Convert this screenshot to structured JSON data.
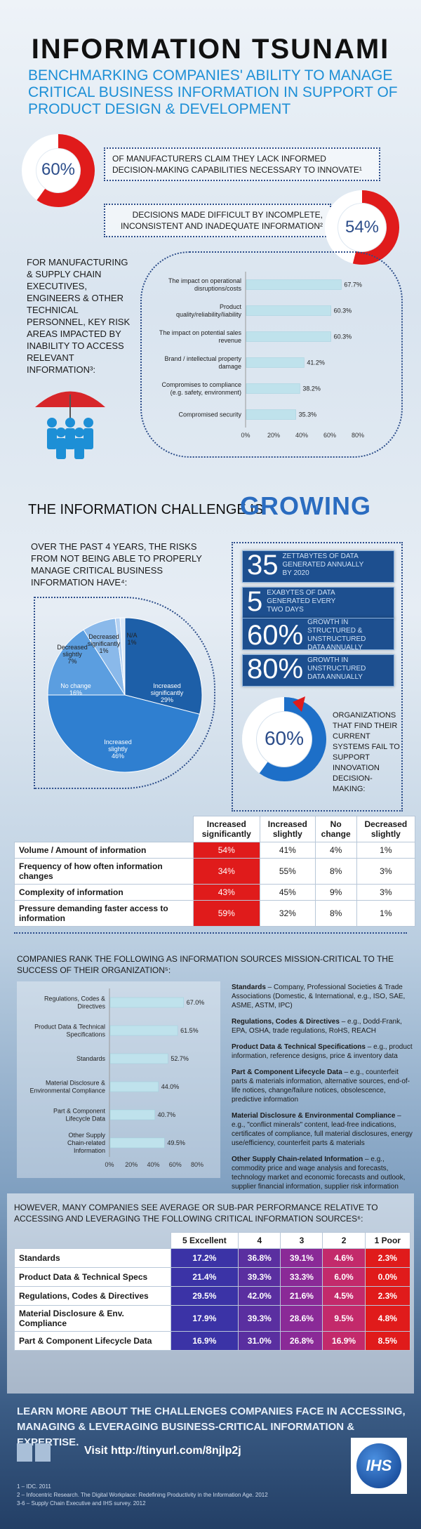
{
  "header": {
    "title": "INFORMATION TSUNAMI",
    "subtitle": "BENCHMARKING COMPANIES' ABILITY TO MANAGE CRITICAL BUSINESS INFORMATION IN SUPPORT OF PRODUCT DESIGN & DEVELOPMENT"
  },
  "stat1": {
    "value": "60%",
    "fraction": 0.6,
    "text": "OF MANUFACTURERS CLAIM THEY LACK INFORMED DECISION-MAKING CAPABILITIES NECESSARY TO INNOVATE¹"
  },
  "stat2": {
    "value": "54%",
    "fraction": 0.54,
    "text": "DECISIONS MADE DIFFICULT BY INCOMPLETE, INCONSISTENT AND INADEQUATE INFORMATION²"
  },
  "risk_intro": "FOR MANUFACTURING & SUPPLY CHAIN EXECUTIVES, ENGINEERS & OTHER TECHNICAL PERSONNEL, KEY RISK AREAS IMPACTED BY INABILITY TO ACCESS RELEVANT INFORMATION³:",
  "growing": {
    "prefix": "THE INFORMATION CHALLENGE IS",
    "word": "GROWING"
  },
  "pie_intro": "OVER THE PAST 4 YEARS, THE RISKS FROM NOT BEING ABLE TO PROPERLY MANAGE CRITICAL BUSINESS INFORMATION HAVE⁴:",
  "facts": [
    {
      "num": "35",
      "text": "ZETTABYTES OF DATA GENERATED ANNUALLY BY 2020"
    },
    {
      "num": "5",
      "text": "EXABYTES OF DATA GENERATED EVERY TWO DAYS"
    },
    {
      "num": "60%",
      "text": "GROWTH IN STRUCTURED & UNSTRUCTURED DATA ANNUALLY"
    },
    {
      "num": "80%",
      "text": "GROWTH IN UNSTRUCTURED DATA ANNUALLY"
    }
  ],
  "stat3": {
    "value": "60%",
    "fraction": 0.6,
    "text": "ORGANIZATIONS THAT FIND THEIR CURRENT SYSTEMS FAIL TO SUPPORT INNOVATION DECISION-MAKING:"
  },
  "change_table": {
    "headers": [
      "Increased significantly",
      "Increased slightly",
      "No change",
      "Decreased slightly"
    ],
    "rows": [
      {
        "label": "Volume / Amount of information",
        "cells": [
          "54%",
          "41%",
          "4%",
          "1%"
        ]
      },
      {
        "label": "Frequency of how often information changes",
        "cells": [
          "34%",
          "55%",
          "8%",
          "3%"
        ]
      },
      {
        "label": "Complexity of information",
        "cells": [
          "43%",
          "45%",
          "9%",
          "3%"
        ]
      },
      {
        "label": "Pressure demanding faster access to information",
        "cells": [
          "59%",
          "32%",
          "8%",
          "1%"
        ]
      }
    ]
  },
  "sources_intro": "COMPANIES RANK THE FOLLOWING AS INFORMATION SOURCES MISSION-CRITICAL TO THE SUCCESS OF THEIR ORGANIZATION⁵:",
  "definitions": [
    {
      "term": "Standards",
      "desc": " – Company, Professional Societies & Trade Associations (Domestic, & International, e.g., ISO, SAE, ASME, ASTM, IPC)"
    },
    {
      "term": "Regulations, Codes & Directives",
      "desc": " – e.g., Dodd-Frank, EPA, OSHA, trade regulations, RoHS, REACH"
    },
    {
      "term": "Product Data & Technical Specifications",
      "desc": " – e.g., product information, reference designs, price & inventory data"
    },
    {
      "term": "Part & Component Lifecycle Data",
      "desc": " – e.g., counterfeit parts & materials information, alternative sources, end-of-life notices, change/failure notices, obsolescence, predictive information"
    },
    {
      "term": "Material Disclosure & Environmental Compliance",
      "desc": " – e.g., \"conflict minerals\" content, lead-free indications, certificates of compliance, full material disclosures, energy use/efficiency, counterfeit parts & materials"
    },
    {
      "term": "Other Supply Chain-related Information",
      "desc": " – e.g., commodity price and wage analysis and forecasts, technology market and economic forecasts and outlook, supplier financial information, supplier risk information"
    }
  ],
  "perf_intro": "HOWEVER, MANY COMPANIES SEE AVERAGE OR SUB-PAR PERFORMANCE RELATIVE TO ACCESSING AND LEVERAGING THE FOLLOWING CRITICAL INFORMATION SOURCES⁶:",
  "perf_table": {
    "headers": [
      "5 Excellent",
      "4",
      "3",
      "2",
      "1 Poor"
    ],
    "rows": [
      {
        "label": "Standards",
        "cells": [
          "17.2%",
          "36.8%",
          "39.1%",
          "4.6%",
          "2.3%"
        ]
      },
      {
        "label": "Product Data & Technical Specs",
        "cells": [
          "21.4%",
          "39.3%",
          "33.3%",
          "6.0%",
          "0.0%"
        ]
      },
      {
        "label": "Regulations, Codes & Directives",
        "cells": [
          "29.5%",
          "42.0%",
          "21.6%",
          "4.5%",
          "2.3%"
        ]
      },
      {
        "label": "Material Disclosure & Env. Compliance",
        "cells": [
          "17.9%",
          "39.3%",
          "28.6%",
          "9.5%",
          "4.8%"
        ]
      },
      {
        "label": "Part & Component Lifecycle Data",
        "cells": [
          "16.9%",
          "31.0%",
          "26.8%",
          "16.9%",
          "8.5%"
        ]
      }
    ]
  },
  "footer": {
    "learn": "LEARN MORE ABOUT THE CHALLENGES COMPANIES FACE IN ACCESSING, MANAGING & LEVERAGING BUSINESS-CRITICAL INFORMATION & EXPERTISE.",
    "visit": "Visit http://tinyurl.com/8njlp2j",
    "logo": "IHS",
    "notes": [
      "1 – IDC. 2011",
      "2 – Infocentric Research. The Digital Workplace: Redefining Productivity in the Information Age. 2012",
      "3-6 – Supply Chain Executive and IHS survey. 2012"
    ]
  },
  "colors": {
    "accent": "#1d8fd6",
    "navy": "#1d4f8f",
    "red": "#e01b1b",
    "bar": "#bfe2ec"
  },
  "chart_data": [
    {
      "type": "bar",
      "orientation": "horizontal",
      "categories": [
        "The impact on operational disruptions/costs",
        "Product quality/reliability/liability",
        "The impact on potential sales revenue",
        "Brand / intellectual property damage",
        "Compromises to compliance (e.g. safety, environment)",
        "Compromised security"
      ],
      "values": [
        67.7,
        60.3,
        60.3,
        41.2,
        38.2,
        35.3
      ],
      "value_labels": [
        "67.7%",
        "60.3%",
        "60.3%",
        "41.2%",
        "38.2%",
        "35.3%"
      ],
      "xlim": [
        0,
        80
      ],
      "ticks": [
        "0%",
        "20%",
        "40%",
        "60%",
        "80%"
      ]
    },
    {
      "type": "pie",
      "categories": [
        "Increased significantly",
        "Increased slightly",
        "No change",
        "Decreased slightly",
        "Decreased significantly",
        "N/A"
      ],
      "values": [
        29,
        46,
        16,
        7,
        1,
        1
      ],
      "value_labels": [
        "29%",
        "46%",
        "16%",
        "7%",
        "1%",
        "1%"
      ]
    },
    {
      "type": "bar",
      "orientation": "horizontal",
      "categories": [
        "Regulations, Codes & Directives",
        "Product Data & Technical Specifications",
        "Standards",
        "Material Disclosure & Environmental Compliance",
        "Part & Component Lifecycle Data",
        "Other Supply Chain-related Information"
      ],
      "values": [
        67.0,
        61.5,
        52.7,
        44.0,
        40.7,
        49.5
      ],
      "value_labels": [
        "67.0%",
        "61.5%",
        "52.7%",
        "44.0%",
        "40.7%",
        "49.5%"
      ],
      "xlim": [
        0,
        80
      ],
      "ticks": [
        "0%",
        "20%",
        "40%",
        "60%",
        "80%"
      ]
    }
  ]
}
